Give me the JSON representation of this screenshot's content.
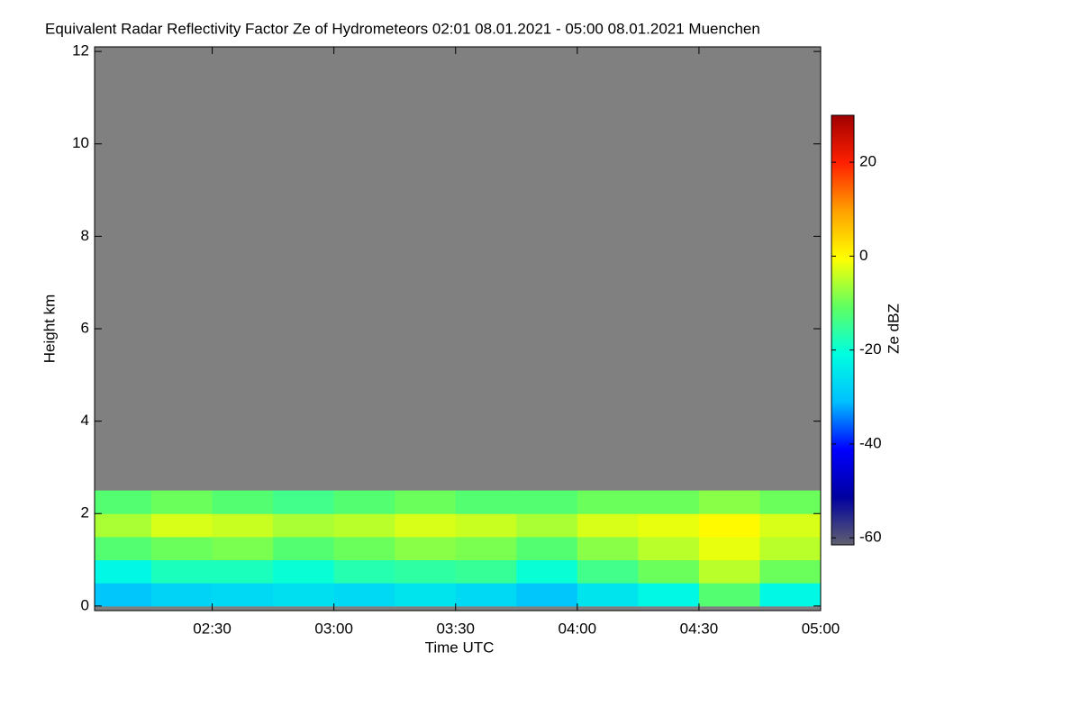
{
  "chart_data": {
    "type": "heatmap",
    "title": "Equivalent Radar Reflectivity Factor Ze of Hydrometeors   02:01 08.01.2021 - 05:00 08.01.2021 Muenchen",
    "x_label": "Time UTC",
    "y_label": "Height km",
    "colorbar_label": "Ze dBZ",
    "xlim": [
      "02:01",
      "05:00"
    ],
    "xticks": [
      "02:30",
      "03:00",
      "03:30",
      "04:00",
      "04:30",
      "05:00"
    ],
    "ylim": [
      -0.1,
      12.1
    ],
    "yticks": [
      0,
      2,
      4,
      6,
      8,
      10,
      12
    ],
    "x_bins": [
      "02:01",
      "02:15",
      "02:30",
      "02:45",
      "03:00",
      "03:15",
      "03:30",
      "03:45",
      "04:00",
      "04:15",
      "04:30",
      "04:45",
      "05:00"
    ],
    "y_bins": [
      0,
      0.5,
      1,
      1.5,
      2,
      2.5
    ],
    "values": [
      [
        -30,
        -28,
        -27,
        -26,
        -27,
        -25,
        -27,
        -30,
        -25,
        -22,
        -12,
        -22
      ],
      [
        -22,
        -18,
        -18,
        -20,
        -17,
        -16,
        -15,
        -20,
        -14,
        -10,
        -5,
        -10
      ],
      [
        -12,
        -10,
        -9,
        -12,
        -10,
        -8,
        -9,
        -12,
        -8,
        -5,
        -2,
        -5
      ],
      [
        -6,
        -3,
        -4,
        -6,
        -5,
        -3,
        -4,
        -6,
        -3,
        -2,
        0,
        -3
      ],
      [
        -12,
        -10,
        -12,
        -14,
        -12,
        -10,
        -12,
        -12,
        -10,
        -10,
        -8,
        -10
      ]
    ],
    "clim": [
      -61.5,
      30
    ],
    "cticks": [
      -60,
      -40,
      -20,
      0,
      20
    ],
    "colormap": [
      "#606070",
      "#0000a0",
      "#0000ff",
      "#00c0ff",
      "#00ffe0",
      "#60ff60",
      "#ffff00",
      "#ffa000",
      "#ff2000",
      "#a00000"
    ],
    "background_color": "#808080"
  }
}
